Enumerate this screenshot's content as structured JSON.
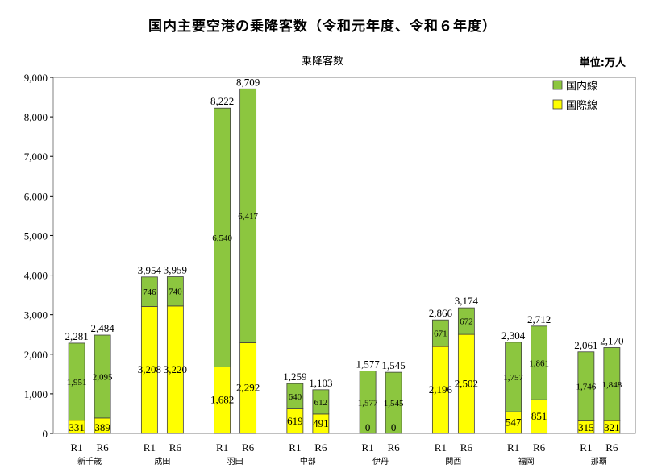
{
  "title": "国内主要空港の乗降客数（令和元年度、令和６年度）",
  "chart_data": {
    "type": "bar",
    "stacked": true,
    "title": "乗降客数",
    "unit_label": "単位:万人",
    "ylim": [
      0,
      9000
    ],
    "yticks": [
      "0",
      "1,000",
      "2,000",
      "3,000",
      "4,000",
      "5,000",
      "6,000",
      "7,000",
      "8,000",
      "9,000"
    ],
    "grid": false,
    "legend_position": "top-right",
    "colors": {
      "domestic": "#8cc63f",
      "international": "#ffff00",
      "border": "#404040"
    },
    "airports": [
      {
        "name": "新千歳",
        "bars": [
          {
            "label": "R1",
            "international": 331,
            "domestic": 1951,
            "total": "2,281",
            "intl_label": "331",
            "dom_label": "1,951"
          },
          {
            "label": "R6",
            "international": 389,
            "domestic": 2095,
            "total": "2,484",
            "intl_label": "389",
            "dom_label": "2,095"
          }
        ]
      },
      {
        "name": "成田",
        "bars": [
          {
            "label": "R1",
            "international": 3208,
            "domestic": 746,
            "total": "3,954",
            "intl_label": "3,208",
            "dom_label": "746"
          },
          {
            "label": "R6",
            "international": 3220,
            "domestic": 740,
            "total": "3,959",
            "intl_label": "3,220",
            "dom_label": "740"
          }
        ]
      },
      {
        "name": "羽田",
        "bars": [
          {
            "label": "R1",
            "international": 1682,
            "domestic": 6540,
            "total": "8,222",
            "intl_label": "1,682",
            "dom_label": "6,540"
          },
          {
            "label": "R6",
            "international": 2292,
            "domestic": 6417,
            "total": "8,709",
            "intl_label": "2,292",
            "dom_label": "6,417"
          }
        ]
      },
      {
        "name": "中部",
        "bars": [
          {
            "label": "R1",
            "international": 619,
            "domestic": 640,
            "total": "1,259",
            "intl_label": "619",
            "dom_label": "640"
          },
          {
            "label": "R6",
            "international": 491,
            "domestic": 612,
            "total": "1,103",
            "intl_label": "491",
            "dom_label": "612"
          }
        ]
      },
      {
        "name": "伊丹",
        "bars": [
          {
            "label": "R1",
            "international": 0,
            "domestic": 1577,
            "total": "1,577",
            "intl_label": "0",
            "dom_label": "1,577"
          },
          {
            "label": "R6",
            "international": 0,
            "domestic": 1545,
            "total": "1,545",
            "intl_label": "0",
            "dom_label": "1,545"
          }
        ]
      },
      {
        "name": "関西",
        "bars": [
          {
            "label": "R1",
            "international": 2196,
            "domestic": 671,
            "total": "2,866",
            "intl_label": "2,196",
            "dom_label": "671"
          },
          {
            "label": "R6",
            "international": 2502,
            "domestic": 672,
            "total": "3,174",
            "intl_label": "2,502",
            "dom_label": "672"
          }
        ]
      },
      {
        "name": "福岡",
        "bars": [
          {
            "label": "R1",
            "international": 547,
            "domestic": 1757,
            "total": "2,304",
            "intl_label": "547",
            "dom_label": "1,757"
          },
          {
            "label": "R6",
            "international": 851,
            "domestic": 1861,
            "total": "2,712",
            "intl_label": "851",
            "dom_label": "1,861"
          }
        ]
      },
      {
        "name": "那覇",
        "bars": [
          {
            "label": "R1",
            "international": 315,
            "domestic": 1746,
            "total": "2,061",
            "intl_label": "315",
            "dom_label": "1,746"
          },
          {
            "label": "R6",
            "international": 321,
            "domestic": 1848,
            "total": "2,170",
            "intl_label": "321",
            "dom_label": "1,848"
          }
        ]
      }
    ],
    "legend": [
      {
        "key": "domestic",
        "label": "国内線"
      },
      {
        "key": "international",
        "label": "国際線"
      }
    ]
  }
}
